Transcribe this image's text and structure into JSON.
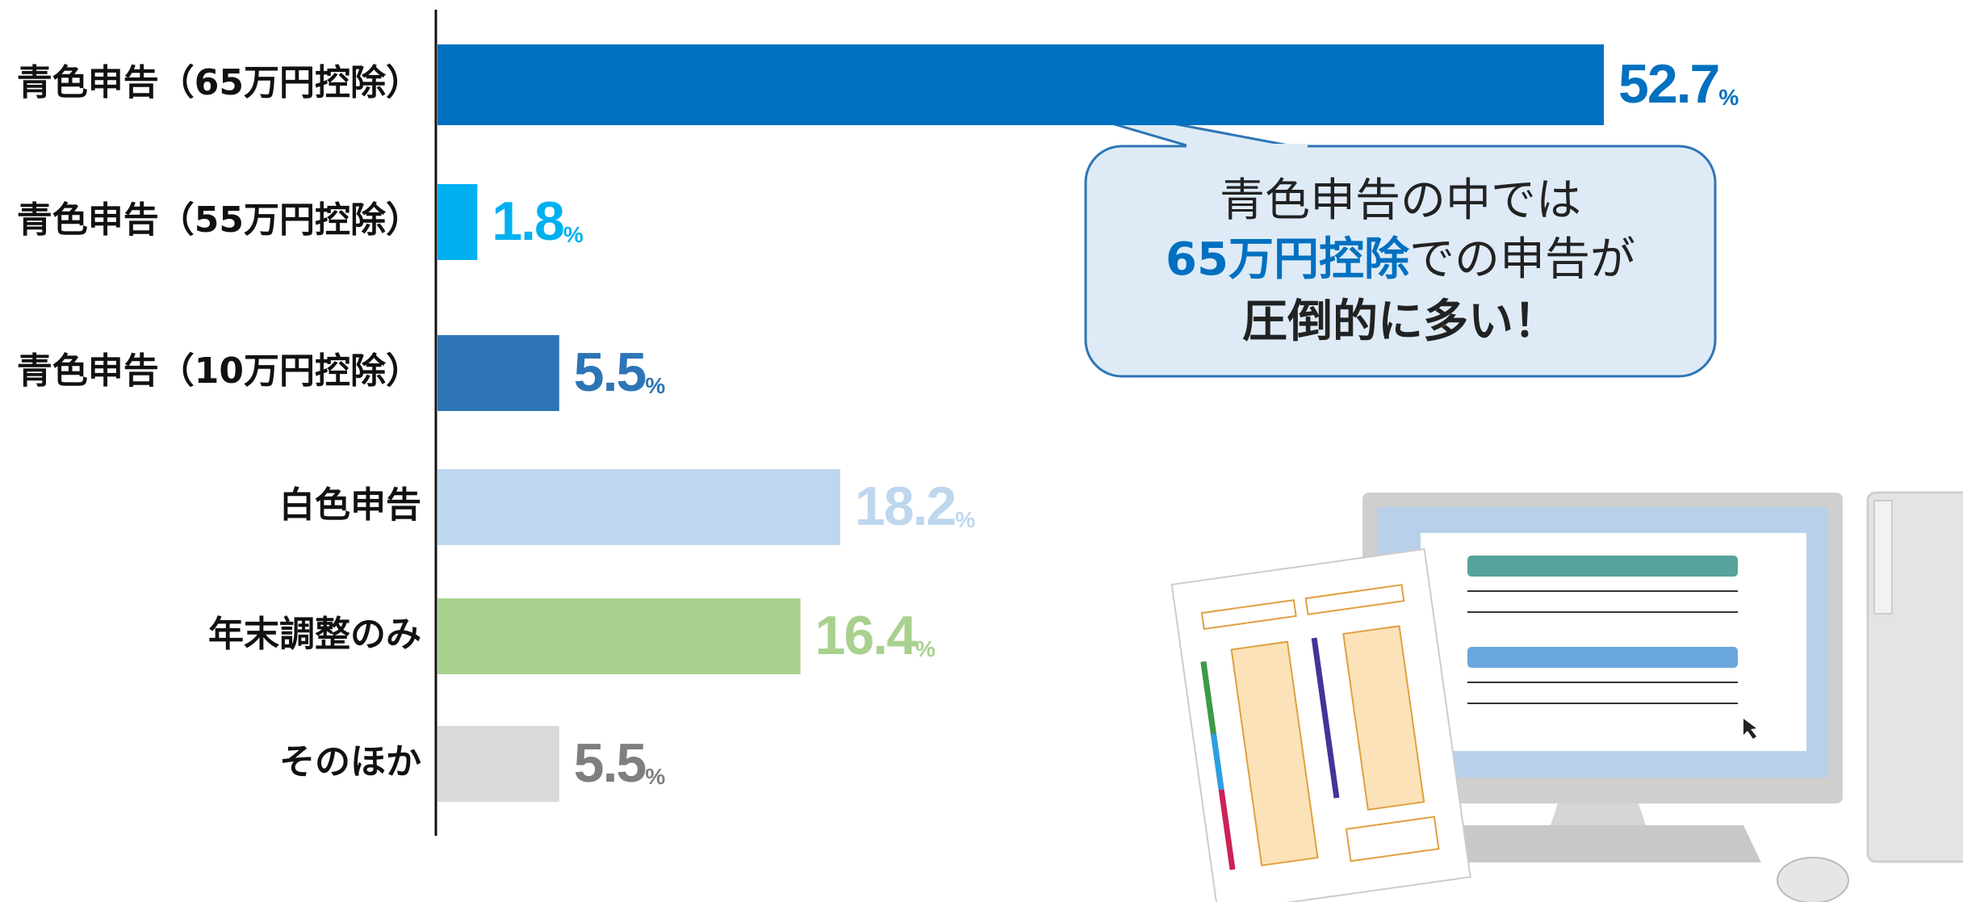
{
  "chart_data": {
    "type": "bar",
    "orientation": "horizontal",
    "categories": [
      "青色申告（65万円控除）",
      "青色申告（55万円控除）",
      "青色申告（10万円控除）",
      "白色申告",
      "年末調整のみ",
      "そのほか"
    ],
    "values": [
      52.7,
      1.8,
      5.5,
      18.2,
      16.4,
      5.5
    ],
    "value_suffix": "%",
    "colors": [
      "#0070c0",
      "#00b0f0",
      "#2e75b6",
      "#bdd7ee",
      "#a9d18e",
      "#d9d9d9"
    ],
    "value_label_colors": [
      "#0070c0",
      "#00b0f0",
      "#2e75b6",
      "#bdd7ee",
      "#a9d18e",
      "#7f7f7f"
    ],
    "xlim": [
      0,
      62
    ],
    "annotation": {
      "line1": "青色申告の中では",
      "line2_highlight": "65万円控除",
      "line2_rest": "での申告が",
      "line3": "圧倒的に多い！"
    }
  }
}
